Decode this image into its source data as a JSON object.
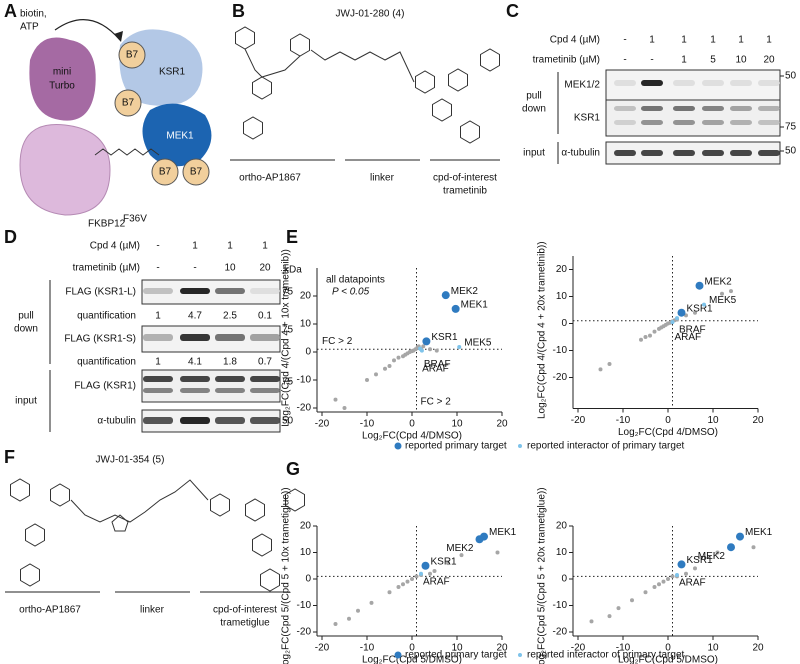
{
  "panel_letters": [
    "A",
    "B",
    "C",
    "D",
    "E",
    "F",
    "G"
  ],
  "panel_a": {
    "substrate": [
      "biotin,",
      "ATP"
    ],
    "enzyme": [
      "mini",
      "Turbo"
    ],
    "ksr1": "KSR1",
    "mek1": "MEK1",
    "tags": [
      "B7",
      "B7",
      "B7",
      "B7"
    ],
    "fkbp": "FKBP12",
    "fkbp_mutation": "F36V"
  },
  "panel_b": {
    "title": "JWJ-01-280 (4)",
    "segments": [
      "ortho-AP1867",
      "linker"
    ],
    "cpd": [
      "cpd-of-interest",
      "trametinib"
    ]
  },
  "panel_c": {
    "rows": [
      {
        "label": "Cpd 4 (µM)",
        "values": [
          "-",
          "1",
          "1",
          "1",
          "1",
          "1"
        ]
      },
      {
        "label": "trametinib (µM)",
        "values": [
          "-",
          "-",
          "1",
          "5",
          "10",
          "20"
        ]
      }
    ],
    "blots": [
      "MEK1/2",
      "KSR1",
      "α-tubulin"
    ],
    "groups": {
      "pull_down": [
        "pull",
        "down"
      ],
      "input": "input"
    },
    "markers": [
      "50",
      "75",
      "50"
    ]
  },
  "panel_d": {
    "rows": [
      {
        "label": "Cpd 4 (µM)",
        "values": [
          "-",
          "1",
          "1",
          "1"
        ]
      },
      {
        "label": "trametinib (µM)",
        "values": [
          "-",
          "-",
          "10",
          "20"
        ]
      }
    ],
    "kda": "kDa",
    "blots": [
      "FLAG (KSR1-L)",
      "FLAG (KSR1-S)",
      "FLAG (KSR1)",
      "α-tubulin"
    ],
    "quantification": [
      {
        "label": "quantification",
        "values": [
          1,
          4.7,
          2.5,
          0.1
        ]
      },
      {
        "label": "quantification",
        "values": [
          1,
          4.1,
          1.8,
          0.7
        ]
      }
    ],
    "groups": {
      "pull_down": [
        "pull",
        "down"
      ],
      "input": "input"
    },
    "markers": [
      "75",
      "75",
      "75",
      "50"
    ]
  },
  "panel_f": {
    "title": "JWJ-01-354 (5)",
    "segments": [
      "ortho-AP1867",
      "linker"
    ],
    "cpd": [
      "cpd-of-interest",
      "trametiglue"
    ]
  },
  "chart_data": [
    {
      "type": "scatter",
      "x_label": "Log₂FC(Cpd 4/DMSO)",
      "y_label": "Log₂FC(Cpd 4/(Cpd 4 + 10x trametinib))",
      "xlim": [
        -20,
        20
      ],
      "xticks": [
        -20,
        -10,
        0,
        10,
        20
      ],
      "ylim": [
        -20,
        30
      ],
      "yticks": [
        -20,
        -10,
        0,
        10,
        20
      ],
      "xthreshold": 1,
      "ythreshold": 1,
      "annotations": [
        "all datapoints",
        "P < 0.05",
        "FC > 2",
        "FC > 2"
      ],
      "series": [
        {
          "color": "#a6a6a6",
          "x": [
            -17,
            -15,
            -10,
            -8,
            -6,
            -5,
            -4,
            -3,
            -2,
            -1.5,
            -1,
            -0.5,
            0,
            0.3,
            0.8,
            1.2,
            1.5,
            2,
            2.5,
            4,
            5.5
          ],
          "values": [
            -17,
            -20,
            -10,
            -8,
            -6,
            -5,
            -3,
            -2,
            -1.5,
            -1,
            -0.5,
            0,
            0.3,
            0.5,
            1,
            1.5,
            2,
            1,
            2,
            1,
            0.5
          ]
        },
        {
          "name": "reported primary target",
          "color": "#2f7bc0",
          "x": [
            7.5,
            9.7,
            3.2
          ],
          "values": [
            20.3,
            15.4,
            3.8
          ],
          "point_labels": [
            "MEK2",
            "MEK1",
            "KSR1"
          ]
        },
        {
          "name": "reported interactor of primary target",
          "color": "#7ec3ea",
          "x": [
            10.5,
            2.2,
            1.8
          ],
          "values": [
            1.8,
            0.5,
            1.2
          ],
          "point_labels": [
            "MEK5",
            "BRAF",
            "ARAF"
          ]
        }
      ]
    },
    {
      "type": "scatter",
      "x_label": "Log₂FC(Cpd 4/DMSO)",
      "y_label": "Log₂FC(Cpd 4/(Cpd 4 + 20x trametinib))",
      "xlim": [
        -20,
        20
      ],
      "xticks": [
        -20,
        -10,
        0,
        10,
        20
      ],
      "ylim": [
        -30,
        25
      ],
      "yticks": [
        -20,
        -10,
        0,
        10,
        20
      ],
      "xthreshold": 1,
      "ythreshold": 1,
      "series": [
        {
          "color": "#a6a6a6",
          "x": [
            -15,
            -13,
            -6,
            -5,
            -4,
            -3,
            -2,
            -1.5,
            -1,
            -0.5,
            0,
            0.5,
            1,
            1.5,
            2,
            4,
            6,
            12,
            14
          ],
          "values": [
            -17,
            -15,
            -6,
            -5,
            -4.5,
            -3,
            -2,
            -1.5,
            -1,
            -0.5,
            0,
            0.3,
            0.8,
            1.2,
            1.5,
            3,
            4,
            11,
            12
          ]
        },
        {
          "color": "#2f7bc0",
          "x": [
            7,
            3
          ],
          "values": [
            14,
            4
          ],
          "point_labels": [
            "MEK2",
            "KSR1"
          ]
        },
        {
          "color": "#7ec3ea",
          "x": [
            8,
            2,
            1
          ],
          "values": [
            7,
            2,
            0.5
          ],
          "point_labels": [
            "MEK5",
            "BRAF",
            "ARAF"
          ]
        }
      ]
    },
    {
      "type": "scatter",
      "x_label": "Log₂FC(Cpd 5/DMSO)",
      "y_label": "Log₂FC(Cpd 5/(Cpd 5 + 10x trametiglue))",
      "xlim": [
        -20,
        20
      ],
      "xticks": [
        -20,
        -10,
        0,
        10,
        20
      ],
      "ylim": [
        -20,
        20
      ],
      "yticks": [
        -20,
        -10,
        0,
        10,
        20
      ],
      "xthreshold": 1,
      "ythreshold": 1,
      "series": [
        {
          "color": "#a6a6a6",
          "x": [
            -17,
            -14,
            -12,
            -9,
            -5,
            -3,
            -2,
            -1,
            0,
            1,
            2,
            4,
            5,
            8,
            11,
            19
          ],
          "values": [
            -17,
            -15,
            -12,
            -9,
            -5,
            -3,
            -2,
            -1,
            0,
            1,
            1.5,
            2,
            3,
            6,
            9,
            10
          ]
        },
        {
          "name": "reported primary target",
          "color": "#2f7bc0",
          "x": [
            16,
            15,
            3
          ],
          "values": [
            16,
            15,
            5
          ],
          "point_labels": [
            "MEK1",
            "MEK2",
            "KSR1"
          ]
        },
        {
          "name": "reported interactor of primary target",
          "color": "#7ec3ea",
          "x": [
            2
          ],
          "values": [
            2
          ],
          "point_labels": [
            "ARAF"
          ]
        }
      ]
    },
    {
      "type": "scatter",
      "x_label": "Log₂FC(Cpd 5/DMSO)",
      "y_label": "Log₂FC(Cpd 5/(Cpd 5 + 20x trametiglue))",
      "xlim": [
        -20,
        20
      ],
      "xticks": [
        -20,
        -10,
        0,
        10,
        20
      ],
      "ylim": [
        -20,
        20
      ],
      "yticks": [
        -20,
        -10,
        0,
        10,
        20
      ],
      "xthreshold": 1,
      "ythreshold": 1,
      "series": [
        {
          "color": "#a6a6a6",
          "x": [
            -17,
            -13,
            -11,
            -8,
            -5,
            -3,
            -2,
            -1,
            0,
            1,
            2,
            4,
            6,
            11,
            19
          ],
          "values": [
            -16,
            -14,
            -11,
            -8,
            -5,
            -3,
            -2,
            -1,
            0,
            1,
            1,
            2,
            4,
            10,
            12
          ]
        },
        {
          "color": "#2f7bc0",
          "x": [
            16,
            14,
            3
          ],
          "values": [
            16,
            12,
            5.5
          ],
          "point_labels": [
            "MEK1",
            "MEK2",
            "KSR1"
          ]
        },
        {
          "color": "#7ec3ea",
          "x": [
            2
          ],
          "values": [
            1.5
          ],
          "point_labels": [
            "ARAF"
          ]
        }
      ]
    }
  ]
}
